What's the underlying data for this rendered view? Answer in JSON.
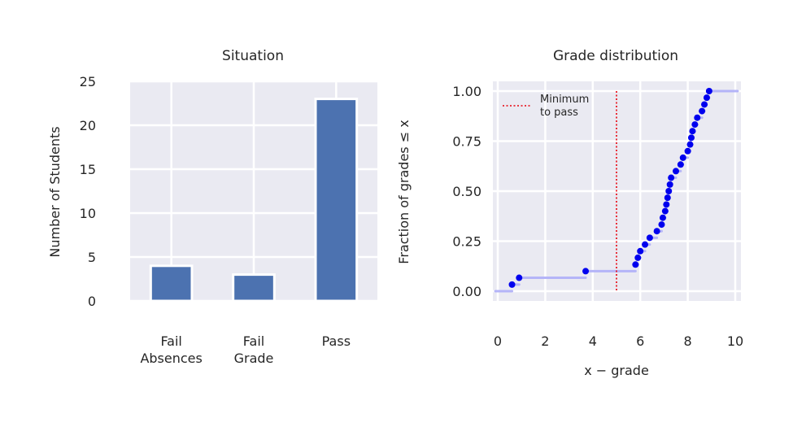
{
  "chart_data": [
    {
      "type": "bar",
      "title": "Situation",
      "categories": [
        [
          "Fail",
          "Absences"
        ],
        [
          "Fail",
          "Grade"
        ],
        [
          "Pass"
        ]
      ],
      "values": [
        4,
        3,
        23
      ],
      "xlabel": "",
      "ylabel": "Number of Students",
      "ylim": [
        0,
        25
      ],
      "yticks": [
        "0",
        "5",
        "10",
        "15",
        "20",
        "25"
      ],
      "grid": true,
      "color": "#4c72b0",
      "background": "#eaeaf2"
    },
    {
      "type": "scatter",
      "title": "Grade distribution",
      "xlabel": "x − grade",
      "ylabel": "Fraction of grades ≤ x",
      "xlim": [
        0,
        10
      ],
      "ylim": [
        0,
        1
      ],
      "xticks": [
        "0",
        "2",
        "4",
        "6",
        "8",
        "10"
      ],
      "yticks": [
        "0.00",
        "0.25",
        "0.50",
        "0.75",
        "1.00"
      ],
      "grid": true,
      "ecdf_color": "#b4b4f8",
      "point_color": "#0000ee",
      "points": [
        {
          "x": 0.6,
          "y": 0.033
        },
        {
          "x": 0.9,
          "y": 0.067
        },
        {
          "x": 3.7,
          "y": 0.1
        },
        {
          "x": 5.8,
          "y": 0.133
        },
        {
          "x": 5.9,
          "y": 0.167
        },
        {
          "x": 6.0,
          "y": 0.2
        },
        {
          "x": 6.2,
          "y": 0.233
        },
        {
          "x": 6.4,
          "y": 0.267
        },
        {
          "x": 6.7,
          "y": 0.3
        },
        {
          "x": 6.9,
          "y": 0.333
        },
        {
          "x": 6.95,
          "y": 0.367
        },
        {
          "x": 7.05,
          "y": 0.4
        },
        {
          "x": 7.1,
          "y": 0.433
        },
        {
          "x": 7.15,
          "y": 0.467
        },
        {
          "x": 7.2,
          "y": 0.5
        },
        {
          "x": 7.25,
          "y": 0.533
        },
        {
          "x": 7.3,
          "y": 0.567
        },
        {
          "x": 7.5,
          "y": 0.6
        },
        {
          "x": 7.7,
          "y": 0.633
        },
        {
          "x": 7.8,
          "y": 0.667
        },
        {
          "x": 8.0,
          "y": 0.7
        },
        {
          "x": 8.1,
          "y": 0.733
        },
        {
          "x": 8.15,
          "y": 0.767
        },
        {
          "x": 8.2,
          "y": 0.8
        },
        {
          "x": 8.3,
          "y": 0.833
        },
        {
          "x": 8.4,
          "y": 0.867
        },
        {
          "x": 8.6,
          "y": 0.9
        },
        {
          "x": 8.7,
          "y": 0.933
        },
        {
          "x": 8.8,
          "y": 0.967
        },
        {
          "x": 8.9,
          "y": 1.0
        }
      ],
      "ecdf_xmin": -0.1,
      "ecdf_xmax": 10.1,
      "reference_line": {
        "x": 5,
        "label": [
          "Minimum",
          "to pass"
        ],
        "color": "#e8000b",
        "style": "dotted"
      },
      "legend": "top-left"
    }
  ]
}
